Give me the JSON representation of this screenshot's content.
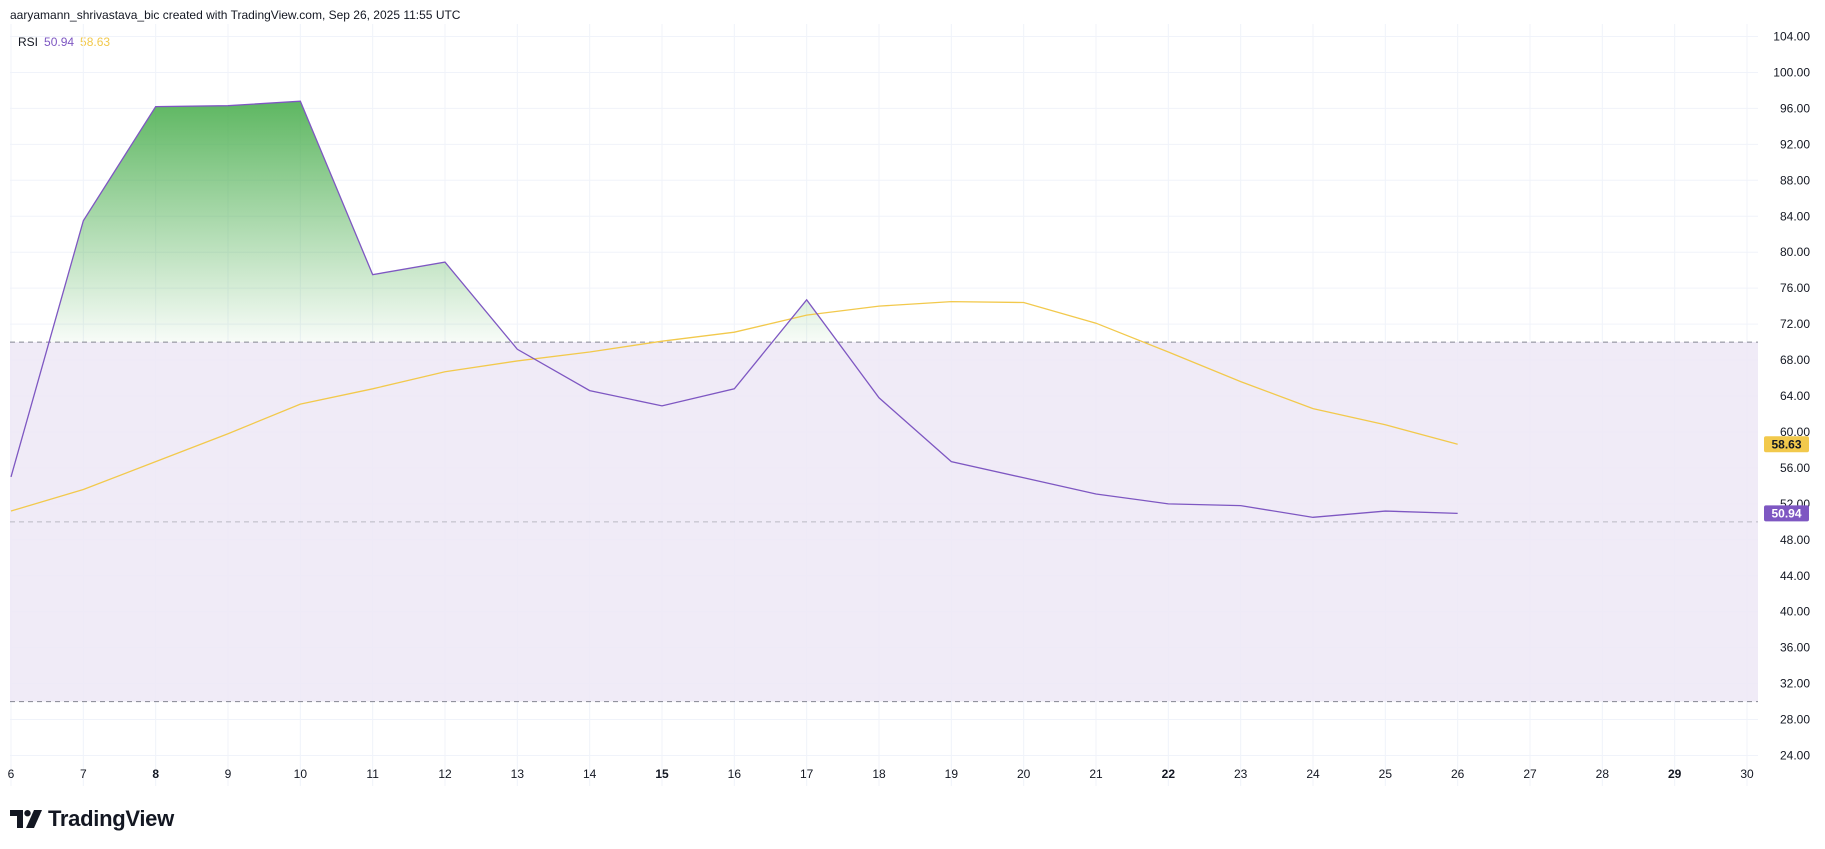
{
  "header": {
    "caption": "aaryamann_shrivastava_bic created with TradingView.com, Sep 26, 2025 11:55 UTC"
  },
  "legend": {
    "name": "RSI",
    "rsi_value": "50.94",
    "ma_value": "58.63"
  },
  "brand": {
    "logo": "tradingview-logo-icon",
    "text": "TradingView"
  },
  "colors": {
    "rsi": "#7e57c2",
    "ma": "#f2c94c",
    "band": "#ede7f6",
    "overbought_fill": "#4caf50",
    "grid": "#f0f3fa",
    "axis_text": "#131722"
  },
  "chart_data": {
    "type": "line",
    "x": [
      6,
      7,
      8,
      9,
      10,
      11,
      12,
      13,
      14,
      15,
      16,
      17,
      18,
      19,
      20,
      21,
      22,
      23,
      24,
      25,
      26
    ],
    "x_ticks": [
      "6",
      "7",
      "8",
      "9",
      "10",
      "11",
      "12",
      "13",
      "14",
      "15",
      "16",
      "17",
      "18",
      "19",
      "20",
      "21",
      "22",
      "23",
      "24",
      "25",
      "26",
      "27",
      "28",
      "29",
      "30"
    ],
    "x_bold_ticks": [
      "8",
      "15",
      "22",
      "29"
    ],
    "xlim": [
      6,
      30
    ],
    "ylim": [
      24,
      104
    ],
    "y_ticks": [
      "104.00",
      "100.00",
      "96.00",
      "92.00",
      "88.00",
      "84.00",
      "80.00",
      "76.00",
      "72.00",
      "68.00",
      "64.00",
      "60.00",
      "56.00",
      "52.00",
      "48.00",
      "44.00",
      "40.00",
      "36.00",
      "32.00",
      "28.00",
      "24.00"
    ],
    "series": [
      {
        "key": "rsi",
        "values": [
          55.0,
          83.5,
          96.2,
          96.3,
          96.8,
          77.5,
          78.9,
          69.2,
          64.6,
          62.9,
          64.8,
          74.7,
          63.8,
          56.7,
          54.9,
          53.1,
          52.0,
          51.8,
          50.5,
          51.2,
          50.94
        ]
      },
      {
        "key": "ma",
        "values": [
          51.2,
          53.6,
          56.7,
          59.8,
          63.1,
          64.8,
          66.7,
          67.9,
          68.9,
          70.1,
          71.1,
          73.0,
          74.0,
          74.5,
          74.4,
          72.1,
          68.9,
          65.6,
          62.6,
          60.8,
          58.63
        ]
      }
    ],
    "levels": {
      "overbought": 70,
      "middle": 50,
      "oversold": 30
    },
    "last_value_labels": [
      {
        "series": "ma",
        "value": "58.63"
      },
      {
        "series": "rsi",
        "value": "50.94"
      }
    ],
    "grid": true
  }
}
